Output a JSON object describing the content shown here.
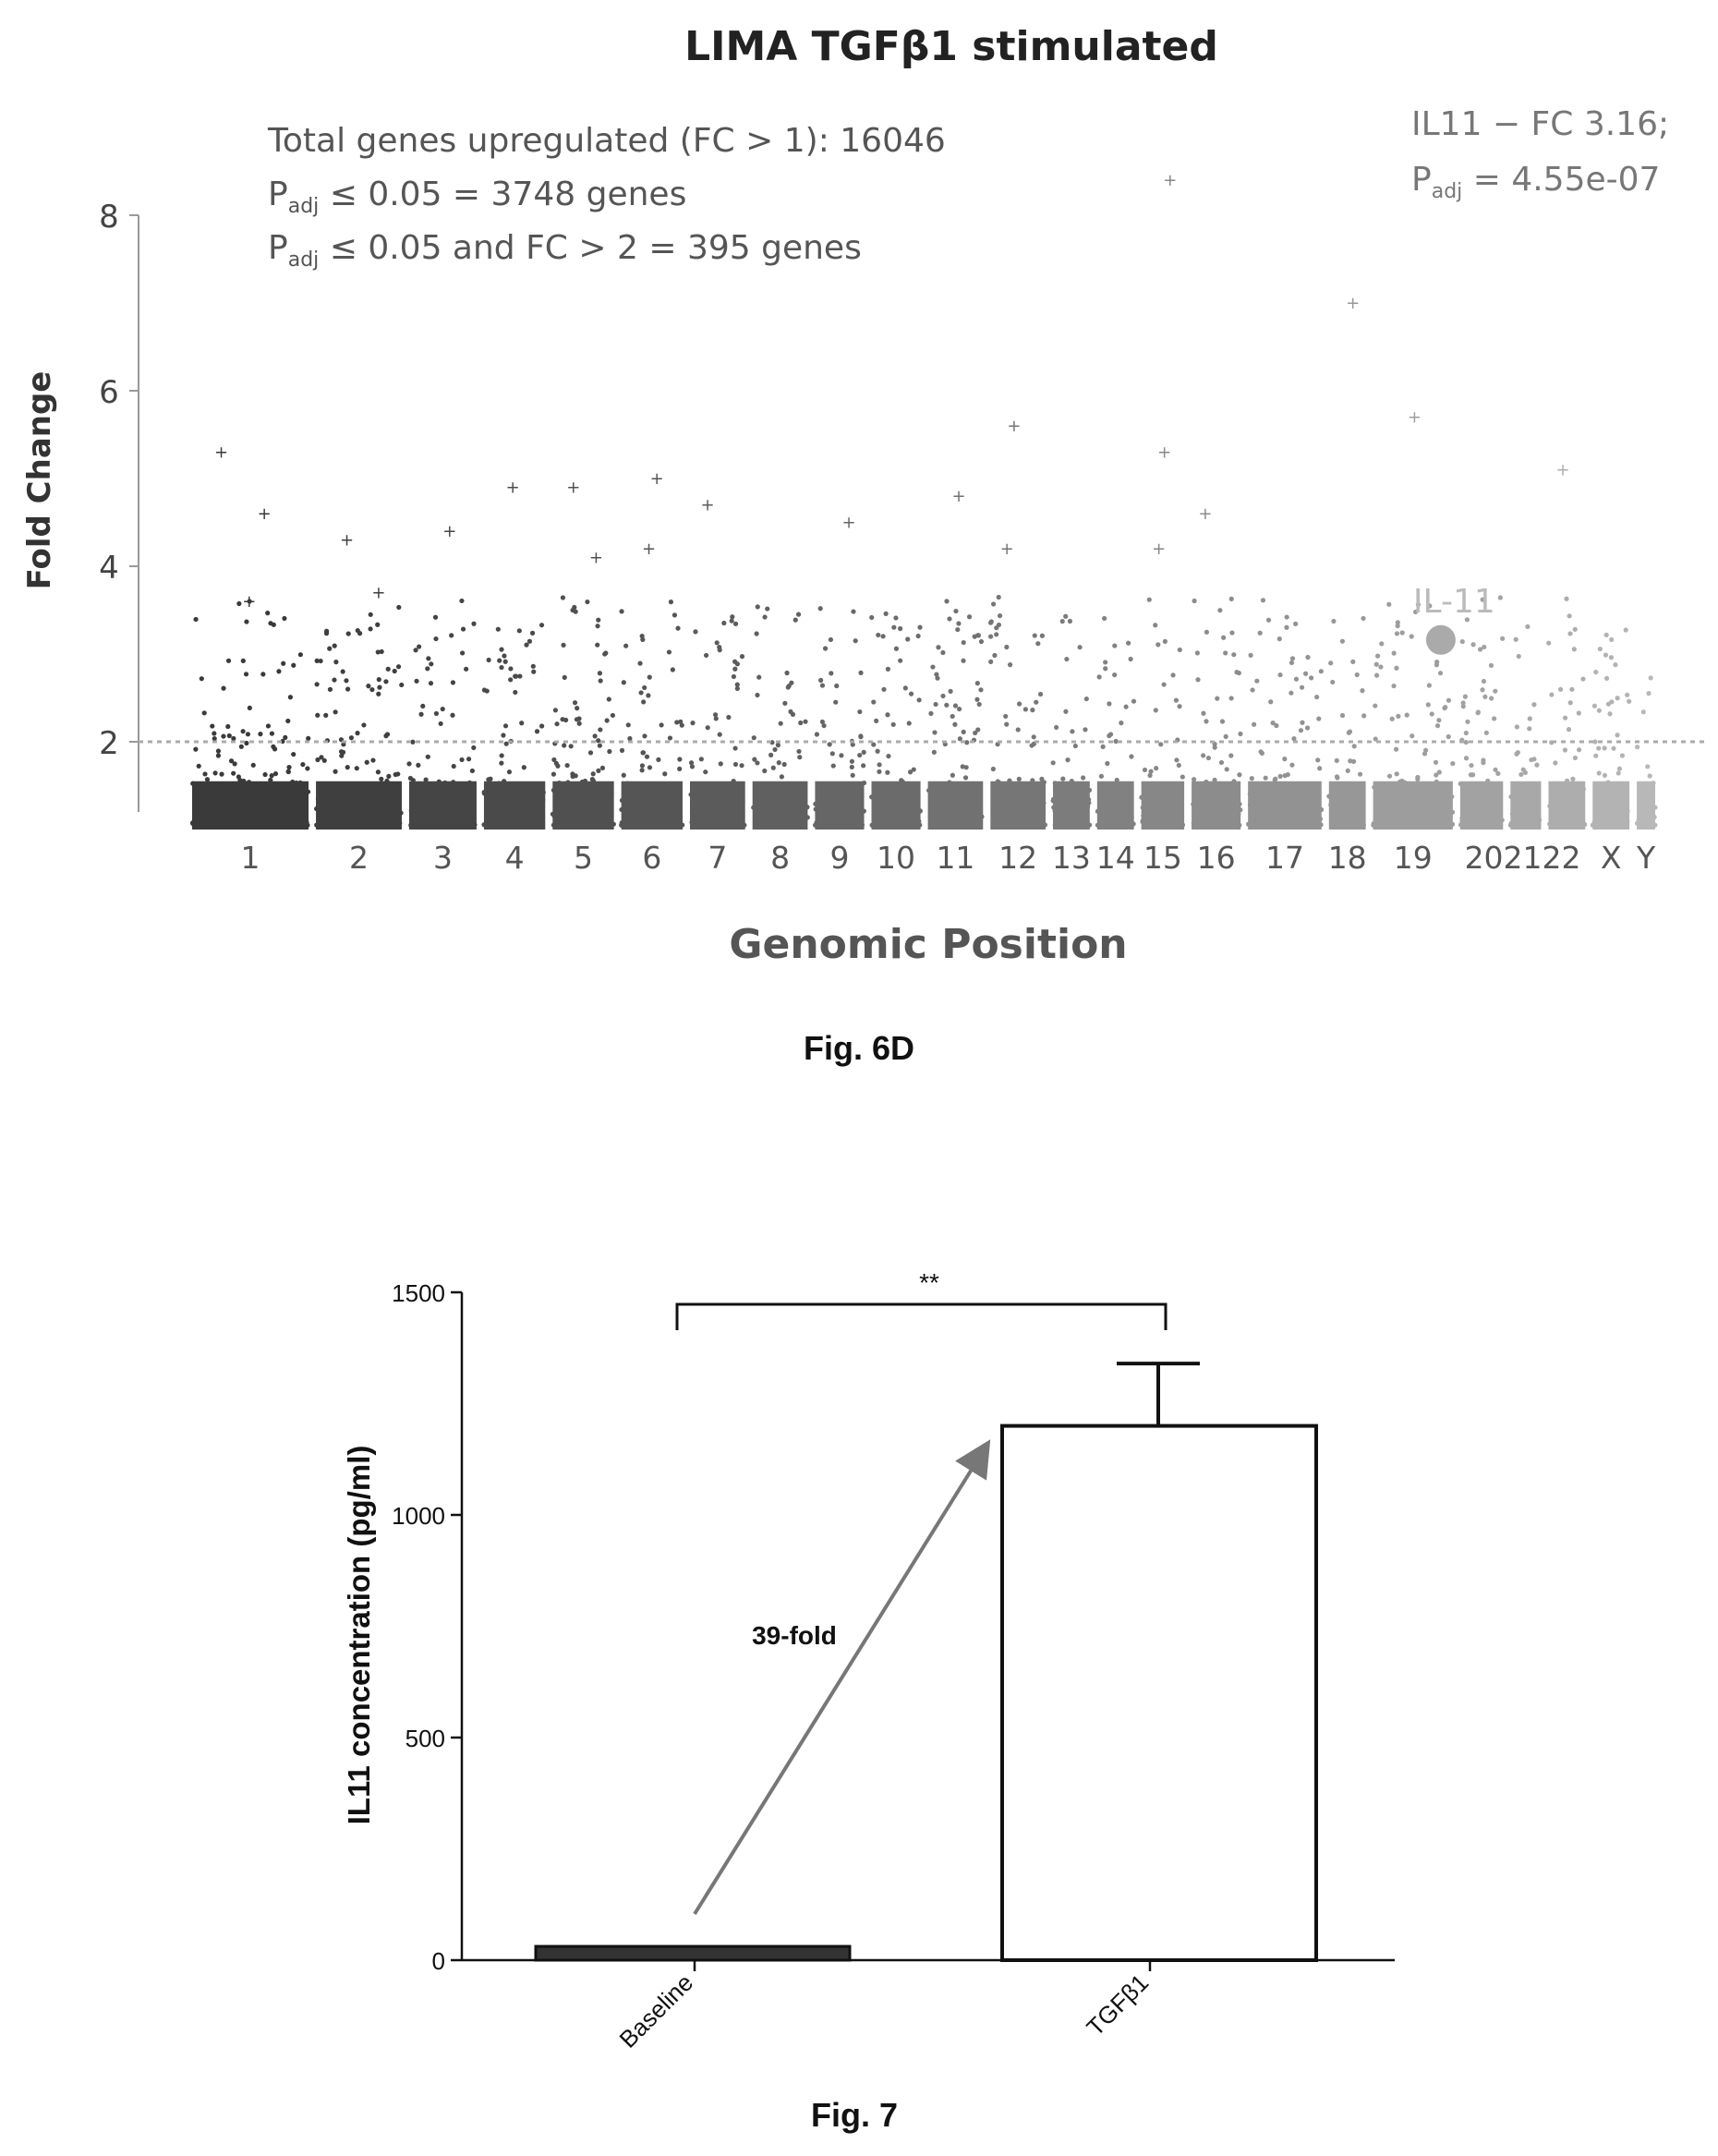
{
  "chart_data": [
    {
      "type": "scatter",
      "title": "LIMA TGFβ1 stimulated",
      "xlabel": "Genomic Position",
      "ylabel": "Fold Change",
      "ylim": [
        1,
        8.6
      ],
      "yticks": [
        "2",
        "4",
        "6",
        "8"
      ],
      "threshold": 2,
      "stats_lines": [
        {
          "main": "Total genes upregulated (FC > 1): 16046",
          "sub": "",
          "rest": ""
        },
        {
          "main": "P",
          "sub": "adj",
          "rest": " ≤ 0.05 = 3748 genes"
        },
        {
          "main": "P",
          "sub": "adj",
          "rest": " ≤ 0.05 and FC > 2 = 395 genes"
        }
      ],
      "highlight_lines": [
        {
          "main": "IL11 − FC 3.16;",
          "sub": "",
          "rest": ""
        },
        {
          "main": "P",
          "sub": "adj",
          "rest": " = 4.55e-07"
        }
      ],
      "highlight": {
        "label": "IL-11",
        "fc": 3.16,
        "chromosome": "19"
      },
      "chromosomes": [
        "1",
        "2",
        "3",
        "4",
        "5",
        "6",
        "7",
        "8",
        "9",
        "10",
        "11",
        "12",
        "13",
        "14",
        "15",
        "16",
        "17",
        "18",
        "19",
        "20",
        "21",
        "22",
        "X",
        "Y"
      ],
      "chromosome_tick_labels": [
        "1",
        "2",
        "3",
        "4",
        "5",
        "6",
        "7",
        "8",
        "9",
        "10",
        "11",
        "12",
        "13",
        "14",
        "15",
        "16",
        "17",
        "18",
        "19",
        "202122",
        "X",
        "Y"
      ],
      "notable_points": [
        {
          "chromosome": "1",
          "fc": 5.3
        },
        {
          "chromosome": "1",
          "fc": 4.6
        },
        {
          "chromosome": "1",
          "fc": 3.6
        },
        {
          "chromosome": "2",
          "fc": 4.3
        },
        {
          "chromosome": "2",
          "fc": 3.7
        },
        {
          "chromosome": "3",
          "fc": 4.4
        },
        {
          "chromosome": "4",
          "fc": 4.9
        },
        {
          "chromosome": "5",
          "fc": 4.9
        },
        {
          "chromosome": "5",
          "fc": 4.1
        },
        {
          "chromosome": "6",
          "fc": 5.0
        },
        {
          "chromosome": "6",
          "fc": 4.2
        },
        {
          "chromosome": "7",
          "fc": 4.7
        },
        {
          "chromosome": "9",
          "fc": 4.5
        },
        {
          "chromosome": "11",
          "fc": 4.8
        },
        {
          "chromosome": "12",
          "fc": 5.6
        },
        {
          "chromosome": "12",
          "fc": 4.2
        },
        {
          "chromosome": "15",
          "fc": 8.4
        },
        {
          "chromosome": "15",
          "fc": 5.3
        },
        {
          "chromosome": "15",
          "fc": 4.2
        },
        {
          "chromosome": "16",
          "fc": 4.6
        },
        {
          "chromosome": "18",
          "fc": 7.0
        },
        {
          "chromosome": "19",
          "fc": 5.7
        },
        {
          "chromosome": "22",
          "fc": 5.1
        }
      ],
      "caption": "Fig. 6D"
    },
    {
      "type": "bar",
      "categories": [
        "Baseline",
        "TGFβ1"
      ],
      "values": [
        31,
        1200
      ],
      "error": [
        0,
        140
      ],
      "ylabel": "IL11 concentration (pg/ml)",
      "ylim": [
        0,
        1500
      ],
      "yticks": [
        "0",
        "500",
        "1000",
        "1500"
      ],
      "significance": "**",
      "annotation": "39-fold",
      "caption": "Fig. 7"
    }
  ]
}
